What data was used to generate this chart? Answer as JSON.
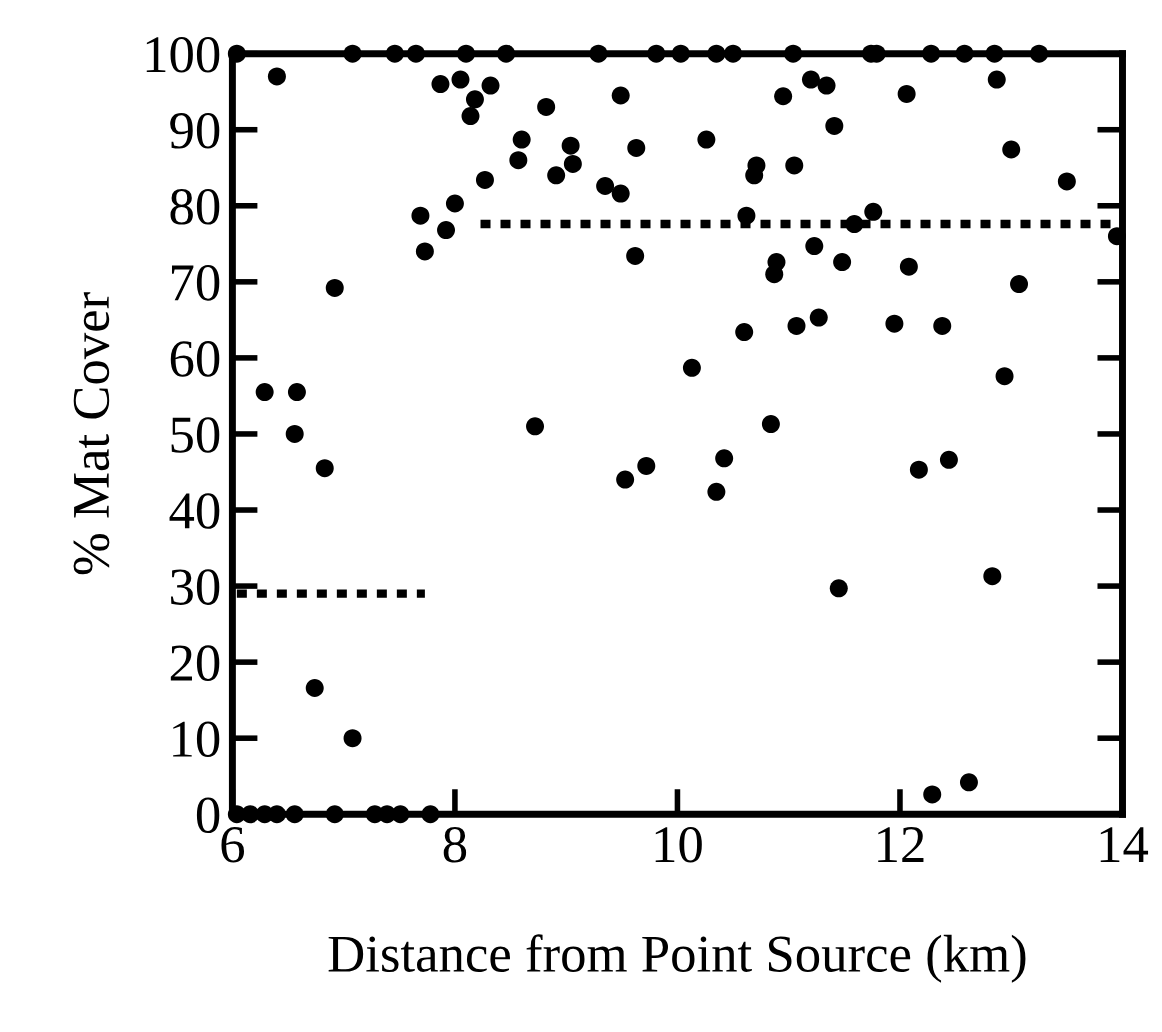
{
  "chart_data": {
    "type": "scatter",
    "xlabel": "Distance from Point Source (km)",
    "ylabel": "% Mat Cover",
    "xlim": [
      6,
      14
    ],
    "ylim": [
      0,
      100
    ],
    "xticks": [
      6,
      8,
      10,
      12,
      14
    ],
    "yticks": [
      0,
      10,
      20,
      30,
      40,
      50,
      60,
      70,
      80,
      90,
      100
    ],
    "grid": false,
    "legend": false,
    "marker": "circle",
    "series": [
      {
        "color": "#000000",
        "x": [
          6.04,
          7.08,
          7.46,
          7.65,
          8.1,
          8.46,
          9.29,
          9.81,
          10.03,
          10.35,
          10.5,
          11.04,
          11.74,
          11.79,
          12.28,
          12.58,
          12.85,
          13.25,
          6.4,
          7.87,
          8.05,
          8.32,
          8.18,
          8.14,
          8.82,
          9.49,
          8.6,
          8.57,
          9.04,
          8.91,
          9.06,
          9.63,
          8.27,
          9.35,
          9.49,
          7.69,
          8.0,
          7.92,
          7.73,
          9.62,
          6.92,
          6.29,
          6.58,
          6.56,
          8.72,
          6.83,
          9.53,
          9.72,
          6.74,
          7.08,
          6.04,
          6.16,
          6.29,
          6.4,
          6.56,
          6.92,
          7.28,
          7.39,
          7.51,
          7.78,
          12.06,
          12.87,
          10.95,
          11.2,
          11.34,
          11.41,
          10.26,
          10.71,
          10.69,
          11.05,
          13.0,
          13.5,
          10.62,
          11.59,
          11.76,
          13.95,
          11.23,
          11.48,
          10.89,
          10.87,
          12.08,
          13.07,
          10.6,
          11.07,
          11.27,
          11.95,
          12.38,
          10.13,
          12.94,
          10.84,
          10.42,
          10.35,
          12.17,
          12.44,
          11.45,
          12.83,
          12.29,
          12.62
        ],
        "values": [
          100,
          100,
          100,
          100,
          100,
          100,
          100,
          100,
          100,
          100,
          100,
          100,
          100,
          100,
          100,
          100,
          100,
          100,
          97,
          96,
          96.6,
          95.8,
          94,
          91.8,
          93,
          94.5,
          88.7,
          86,
          87.9,
          84,
          85.5,
          87.6,
          83.4,
          82.6,
          81.6,
          78.7,
          80.3,
          76.8,
          74,
          73.4,
          69.2,
          55.5,
          55.5,
          50,
          51,
          45.5,
          44,
          45.8,
          16.6,
          10,
          0,
          0,
          0,
          0,
          0,
          0,
          0,
          0,
          0,
          0,
          94.7,
          96.6,
          94.4,
          96.6,
          95.8,
          90.5,
          88.7,
          85.3,
          84,
          85.3,
          87.4,
          83.2,
          78.7,
          77.6,
          79.2,
          76,
          74.7,
          72.6,
          72.6,
          71,
          72,
          69.7,
          63.4,
          64.2,
          65.3,
          64.5,
          64.2,
          58.7,
          57.6,
          51.3,
          46.8,
          42.4,
          45.3,
          46.6,
          29.7,
          31.3,
          2.6,
          4.2
        ]
      },
      {
        "type": "line",
        "color": "#000000",
        "line_style": "dotted",
        "marker": "none",
        "x": [
          6.04,
          7.73
        ],
        "values": [
          29,
          29
        ]
      },
      {
        "type": "line",
        "color": "#000000",
        "line_style": "dotted",
        "marker": "none",
        "x": [
          8.23,
          14
        ],
        "values": [
          77.6,
          77.6
        ]
      }
    ]
  }
}
